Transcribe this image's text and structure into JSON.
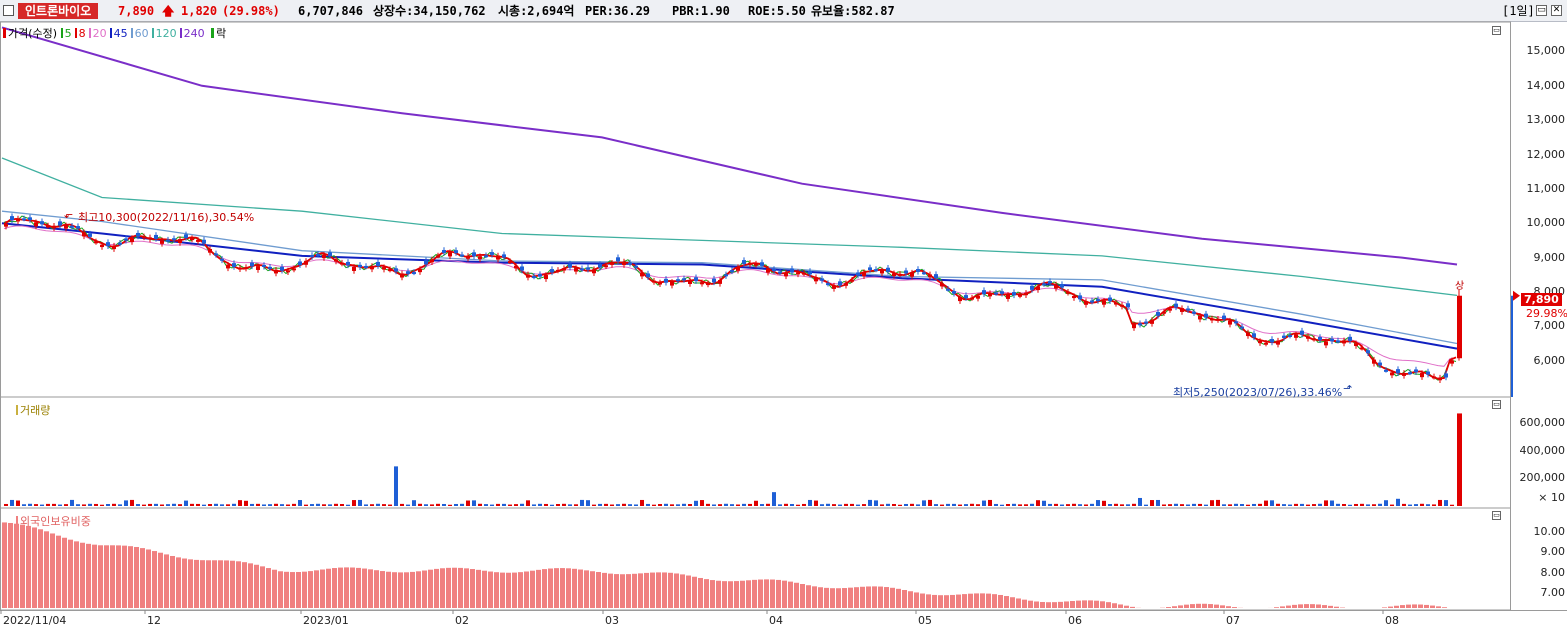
{
  "header": {
    "stock_name": "인트론바이오",
    "price": "7,890",
    "change": "1,820",
    "change_pct": "(29.98%)",
    "volume": "6,707,846",
    "listed_shares": "상장수:34,150,762",
    "market_cap": "시총:2,694억",
    "per": "PER:36.29",
    "pbr": "PBR:1.90",
    "roe": "ROE:5.50",
    "float_ratio": "유보율:582.87",
    "period": "[1일]"
  },
  "price_panel": {
    "legend": {
      "price_label": "가격(수정)",
      "ma": [
        {
          "label": "5",
          "color": "#1aa31a"
        },
        {
          "label": "8",
          "color": "#e00000"
        },
        {
          "label": "20",
          "color": "#e070c8"
        },
        {
          "label": "45",
          "color": "#1020c0"
        },
        {
          "label": "60",
          "color": "#6f9cd0"
        },
        {
          "label": "120",
          "color": "#40b0a0"
        },
        {
          "label": "240",
          "color": "#7a2ec8"
        }
      ],
      "extra_label": "락",
      "price_marker_color": "#e00000"
    },
    "axis_ticks": [
      "15,000",
      "14,000",
      "13,000",
      "12,000",
      "11,000",
      "10,000",
      "9,000",
      "8,000",
      "7,000",
      "6,000"
    ],
    "current_price_tag": "7,890",
    "current_pct_tag": "29.98%",
    "high_annotation": "최고10,300(2022/11/16),30.54%",
    "low_annotation": "최저5,250(2023/07/26),33.46%",
    "limit_up_mark": "상"
  },
  "volume_panel": {
    "label": "거래량",
    "axis_ticks": [
      "600,000",
      "400,000",
      "200,000"
    ],
    "unit": "× 10"
  },
  "foreign_panel": {
    "label": "외국인보유비중",
    "axis_ticks": [
      "10.00",
      "9.00",
      "8.00",
      "7.00"
    ]
  },
  "x_axis": [
    "2022/11/04",
    "12",
    "2023/01",
    "02",
    "03",
    "04",
    "05",
    "06",
    "07",
    "08"
  ],
  "colors": {
    "up": "#e00000",
    "down": "#1e5fd6",
    "foreign_bar": "#f08080"
  },
  "chart_data": [
    {
      "type": "line",
      "title": "",
      "ylim": [
        5000,
        15800
      ],
      "series": [
        {
          "name": "240",
          "x": [
            0,
            200,
            400,
            600,
            800,
            1000,
            1200,
            1400,
            1455
          ],
          "values": [
            15700,
            14000,
            13200,
            12500,
            11150,
            10300,
            9550,
            9000,
            8800
          ]
        },
        {
          "name": "120",
          "x": [
            0,
            100,
            300,
            500,
            700,
            900,
            1100,
            1300,
            1455
          ],
          "values": [
            11900,
            10750,
            10350,
            9700,
            9500,
            9300,
            9050,
            8450,
            7900
          ]
        },
        {
          "name": "60",
          "x": [
            0,
            100,
            300,
            500,
            700,
            900,
            1100,
            1300,
            1455
          ],
          "values": [
            10350,
            10050,
            9200,
            8900,
            8850,
            8450,
            8350,
            7350,
            6500
          ]
        },
        {
          "name": "45",
          "x": [
            0,
            100,
            300,
            500,
            700,
            900,
            1100,
            1300,
            1455
          ],
          "values": [
            10000,
            9700,
            9050,
            8850,
            8800,
            8400,
            8150,
            7150,
            6350
          ]
        }
      ]
    },
    {
      "type": "bar",
      "title": "",
      "note": "volume, ×10",
      "ylim": [
        0,
        700000
      ],
      "x": [
        395,
        775,
        837,
        1140,
        1398,
        1460
      ],
      "values": [
        286000,
        100000,
        96000,
        58000,
        52000,
        668000
      ]
    },
    {
      "type": "bar",
      "title": "",
      "note": "foreign ownership ratio",
      "ylim": [
        6.25,
        11.0
      ],
      "x": [
        0,
        100,
        280,
        600,
        800,
        1140,
        1460
      ],
      "values": [
        10.5,
        9.4,
        8.15,
        8.1,
        7.45,
        6.35,
        6.3
      ]
    }
  ]
}
